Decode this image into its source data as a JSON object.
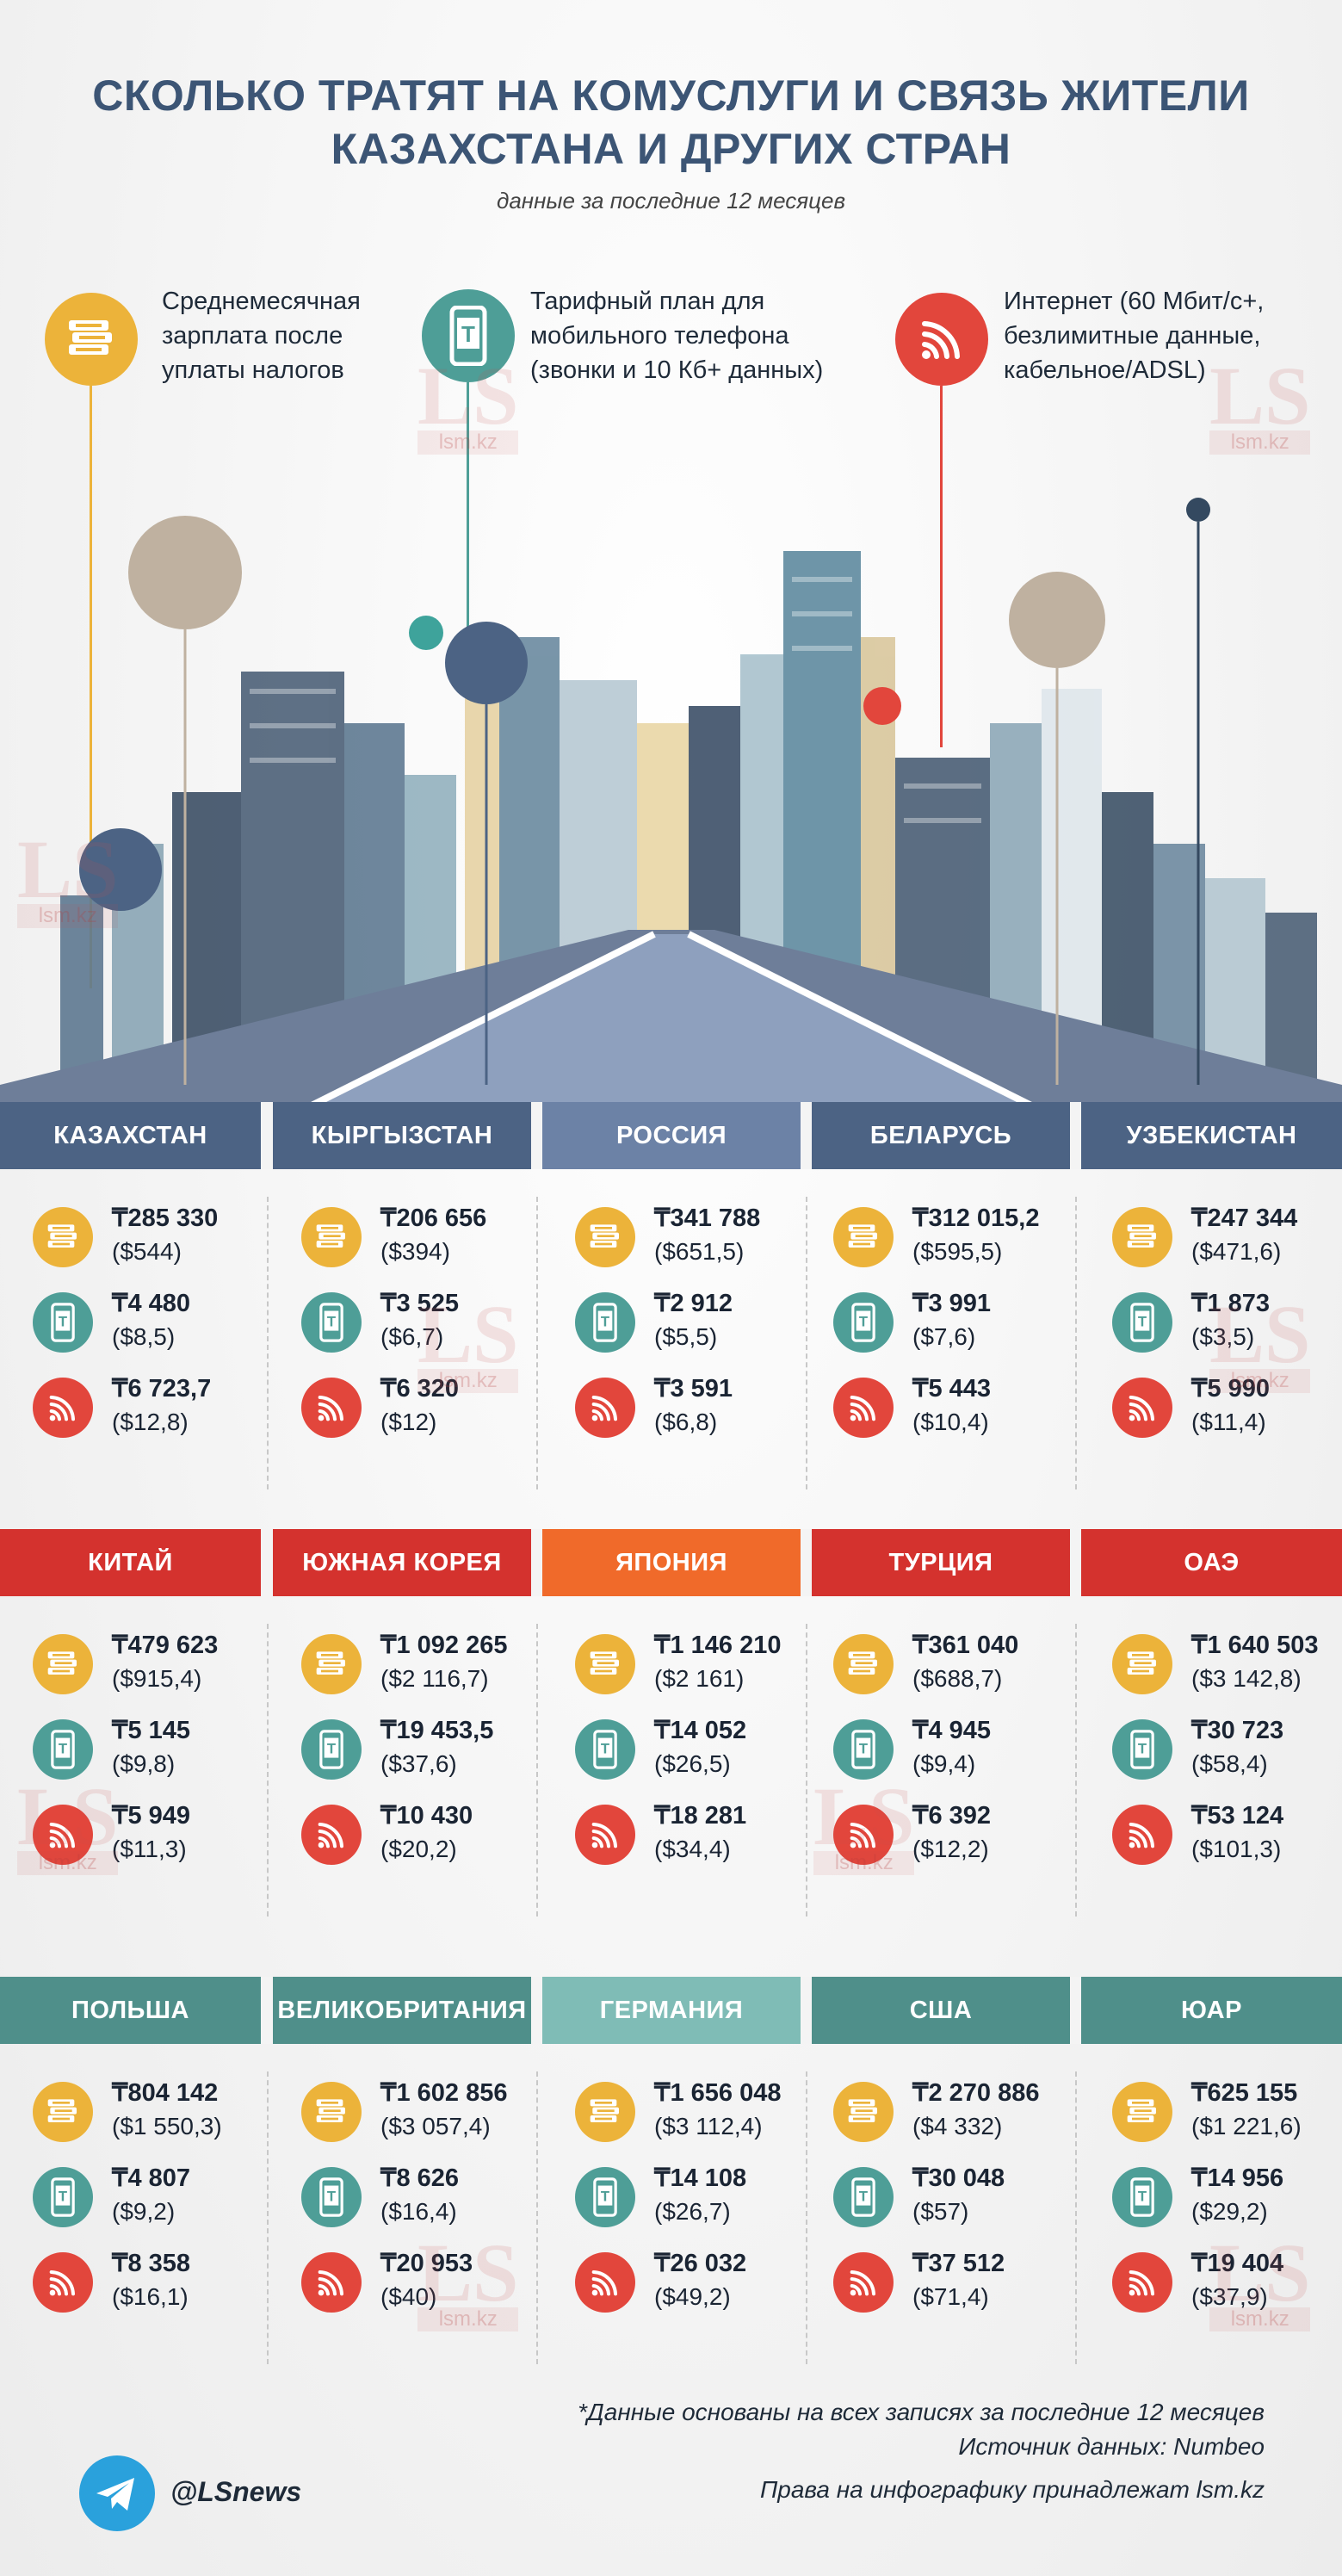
{
  "title_line1": "СКОЛЬКО ТРАТЯТ НА КОМУСЛУГИ И СВЯЗЬ ЖИТЕЛИ",
  "title_line2": "КАЗАХСТАНА И ДРУГИХ СТРАН",
  "subtitle": "данные за последние 12 месяцев",
  "legend": {
    "salary": {
      "icon": "money-stack-icon",
      "color": "#ecb33a",
      "lines": [
        "Среднемесячная",
        "зарплата после",
        "уплаты налогов"
      ]
    },
    "mobile": {
      "icon": "mobile-phone-icon",
      "color": "#4e9e97",
      "lines": [
        "Тарифный план для",
        "мобильного телефона",
        "(звонки и 10 Кб+ данных)"
      ]
    },
    "internet": {
      "icon": "wifi-icon",
      "color": "#e2463c",
      "lines": [
        "Интернет (60 Мбит/с+,",
        "безлимитные данные,",
        "кабельное/ADSL)"
      ]
    }
  },
  "watermark": {
    "big": "LS",
    "small": "lsm.kz"
  },
  "colors": {
    "band1": "#4c6384",
    "band2": "#d4322e",
    "band3": "#4f8f8a",
    "russia": "#6c82a6",
    "japan": "#f06a2a",
    "germany": "#7fbcb6"
  },
  "rows": [
    {
      "countries": [
        {
          "name": "КАЗАХСТАН",
          "salary": "₸285 330",
          "salary_usd": "($544)",
          "mobile": "₸4 480",
          "mobile_usd": "($8,5)",
          "internet": "₸6 723,7",
          "internet_usd": "($12,8)"
        },
        {
          "name": "КЫРГЫЗСТАН",
          "salary": "₸206 656",
          "salary_usd": "($394)",
          "mobile": "₸3 525",
          "mobile_usd": "($6,7)",
          "internet": "₸6 320",
          "internet_usd": "($12)"
        },
        {
          "name": "РОССИЯ",
          "salary": "₸341 788",
          "salary_usd": "($651,5)",
          "mobile": "₸2 912",
          "mobile_usd": "($5,5)",
          "internet": "₸3 591",
          "internet_usd": "($6,8)"
        },
        {
          "name": "БЕЛАРУСЬ",
          "salary": "₸312 015,2",
          "salary_usd": "($595,5)",
          "mobile": "₸3 991",
          "mobile_usd": "($7,6)",
          "internet": "₸5 443",
          "internet_usd": "($10,4)"
        },
        {
          "name": "УЗБЕКИСТАН",
          "salary": "₸247 344",
          "salary_usd": "($471,6)",
          "mobile": "₸1 873",
          "mobile_usd": "($3,5)",
          "internet": "₸5 990",
          "internet_usd": "($11,4)"
        }
      ]
    },
    {
      "countries": [
        {
          "name": "КИТАЙ",
          "salary": "₸479 623",
          "salary_usd": "($915,4)",
          "mobile": "₸5 145",
          "mobile_usd": "($9,8)",
          "internet": "₸5 949",
          "internet_usd": "($11,3)"
        },
        {
          "name": "ЮЖНАЯ КОРЕЯ",
          "salary": "₸1 092 265",
          "salary_usd": "($2 116,7)",
          "mobile": "₸19 453,5",
          "mobile_usd": "($37,6)",
          "internet": "₸10 430",
          "internet_usd": "($20,2)"
        },
        {
          "name": "ЯПОНИЯ",
          "salary": "₸1 146 210",
          "salary_usd": "($2 161)",
          "mobile": "₸14 052",
          "mobile_usd": "($26,5)",
          "internet": "₸18 281",
          "internet_usd": "($34,4)"
        },
        {
          "name": "ТУРЦИЯ",
          "salary": "₸361 040",
          "salary_usd": "($688,7)",
          "mobile": "₸4 945",
          "mobile_usd": "($9,4)",
          "internet": "₸6 392",
          "internet_usd": "($12,2)"
        },
        {
          "name": "ОАЭ",
          "salary": "₸1 640 503",
          "salary_usd": "($3 142,8)",
          "mobile": "₸30 723",
          "mobile_usd": "($58,4)",
          "internet": "₸53 124",
          "internet_usd": "($101,3)"
        }
      ]
    },
    {
      "countries": [
        {
          "name": "ПОЛЬША",
          "salary": "₸804 142",
          "salary_usd": "($1 550,3)",
          "mobile": "₸4 807",
          "mobile_usd": "($9,2)",
          "internet": "₸8 358",
          "internet_usd": "($16,1)"
        },
        {
          "name": "ВЕЛИКОБРИТАНИЯ",
          "salary": "₸1 602 856",
          "salary_usd": "($3 057,4)",
          "mobile": "₸8 626",
          "mobile_usd": "($16,4)",
          "internet": "₸20 953",
          "internet_usd": "($40)"
        },
        {
          "name": "ГЕРМАНИЯ",
          "salary": "₸1 656 048",
          "salary_usd": "($3 112,4)",
          "mobile": "₸14 108",
          "mobile_usd": "($26,7)",
          "internet": "₸26 032",
          "internet_usd": "($49,2)"
        },
        {
          "name": "США",
          "salary": "₸2 270 886",
          "salary_usd": "($4 332)",
          "mobile": "₸30 048",
          "mobile_usd": "($57)",
          "internet": "₸37 512",
          "internet_usd": "($71,4)"
        },
        {
          "name": "ЮАР",
          "salary": "₸625 155",
          "salary_usd": "($1 221,6)",
          "mobile": "₸14 956",
          "mobile_usd": "($29,2)",
          "internet": "₸19 404",
          "internet_usd": "($37,9)"
        }
      ]
    }
  ],
  "footer": {
    "note": "*Данные основаны на всех записях за последние 12 месяцев",
    "source": "Источник данных: Numbeo",
    "rights": "Права на инфографику принадлежат lsm.kz",
    "telegram_icon": "telegram-icon",
    "handle": "@LSnews"
  }
}
